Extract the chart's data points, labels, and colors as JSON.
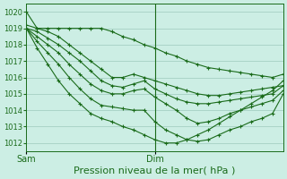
{
  "bg_color": "#cceee4",
  "grid_color": "#aad4c8",
  "line_color": "#1a6b1a",
  "marker_color": "#1a6b1a",
  "xlabel": "Pression niveau de la mer( hPa )",
  "xlabel_fontsize": 8,
  "ylim": [
    1011.5,
    1020.5
  ],
  "yticks": [
    1012,
    1013,
    1014,
    1015,
    1016,
    1017,
    1018,
    1019,
    1020
  ],
  "ytick_fontsize": 6,
  "xtick_labels": [
    "Sam",
    "Dim"
  ],
  "xtick_positions": [
    0,
    24
  ],
  "xlim": [
    0,
    48
  ],
  "vline_x": 24,
  "series": [
    {
      "x": [
        0,
        2,
        4,
        6,
        8,
        10,
        12,
        14,
        16,
        18,
        20,
        22,
        24,
        26,
        28,
        30,
        32,
        34,
        36,
        38,
        40,
        42,
        44,
        46,
        48
      ],
      "y": [
        1020.0,
        1019.0,
        1019.0,
        1019.0,
        1019.0,
        1019.0,
        1019.0,
        1019.0,
        1018.8,
        1018.5,
        1018.3,
        1018.0,
        1017.8,
        1017.5,
        1017.3,
        1017.0,
        1016.8,
        1016.6,
        1016.5,
        1016.4,
        1016.3,
        1016.2,
        1016.1,
        1016.0,
        1016.2
      ]
    },
    {
      "x": [
        0,
        2,
        4,
        6,
        8,
        10,
        12,
        14,
        16,
        18,
        20,
        22,
        24,
        26,
        28,
        30,
        32,
        34,
        36,
        38,
        40,
        42,
        44,
        46,
        48
      ],
      "y": [
        1019.2,
        1019.0,
        1018.8,
        1018.5,
        1018.0,
        1017.5,
        1017.0,
        1016.5,
        1016.0,
        1016.0,
        1016.2,
        1016.0,
        1015.8,
        1015.6,
        1015.4,
        1015.2,
        1015.0,
        1014.9,
        1014.9,
        1015.0,
        1015.1,
        1015.2,
        1015.3,
        1015.4,
        1015.5
      ]
    },
    {
      "x": [
        0,
        2,
        4,
        6,
        8,
        10,
        12,
        14,
        16,
        18,
        20,
        22,
        24,
        26,
        28,
        30,
        32,
        34,
        36,
        38,
        40,
        42,
        44,
        46,
        48
      ],
      "y": [
        1019.0,
        1018.8,
        1018.4,
        1018.0,
        1017.5,
        1017.0,
        1016.4,
        1015.8,
        1015.5,
        1015.4,
        1015.6,
        1015.8,
        1015.3,
        1015.0,
        1014.7,
        1014.5,
        1014.4,
        1014.4,
        1014.5,
        1014.6,
        1014.7,
        1014.8,
        1014.9,
        1015.0,
        1015.5
      ]
    },
    {
      "x": [
        0,
        2,
        4,
        6,
        8,
        10,
        12,
        14,
        16,
        18,
        20,
        22,
        24,
        26,
        28,
        30,
        32,
        34,
        36,
        38,
        40,
        42,
        44,
        46,
        48
      ],
      "y": [
        1019.0,
        1018.5,
        1018.0,
        1017.5,
        1016.8,
        1016.2,
        1015.6,
        1015.2,
        1015.0,
        1015.0,
        1015.2,
        1015.3,
        1014.8,
        1014.4,
        1014.0,
        1013.5,
        1013.2,
        1013.3,
        1013.5,
        1013.8,
        1014.0,
        1014.2,
        1014.4,
        1014.6,
        1015.2
      ]
    },
    {
      "x": [
        0,
        2,
        4,
        6,
        8,
        10,
        12,
        14,
        16,
        18,
        20,
        22,
        24,
        26,
        28,
        30,
        32,
        34,
        36,
        38,
        40,
        42,
        44,
        46,
        48
      ],
      "y": [
        1019.0,
        1018.2,
        1017.5,
        1016.8,
        1016.0,
        1015.3,
        1014.7,
        1014.3,
        1014.2,
        1014.1,
        1014.0,
        1014.0,
        1013.3,
        1012.8,
        1012.5,
        1012.2,
        1012.1,
        1012.2,
        1012.5,
        1012.8,
        1013.0,
        1013.3,
        1013.5,
        1013.8,
        1015.0
      ]
    },
    {
      "x": [
        0,
        2,
        4,
        6,
        8,
        10,
        12,
        14,
        16,
        18,
        20,
        22,
        24,
        26,
        28,
        30,
        32,
        34,
        36,
        38,
        40,
        42,
        44,
        46,
        48
      ],
      "y": [
        1019.0,
        1017.8,
        1016.8,
        1015.8,
        1015.0,
        1014.4,
        1013.8,
        1013.5,
        1013.3,
        1013.0,
        1012.8,
        1012.5,
        1012.2,
        1012.0,
        1012.0,
        1012.2,
        1012.5,
        1012.8,
        1013.2,
        1013.6,
        1014.0,
        1014.4,
        1014.8,
        1015.2,
        1015.8
      ]
    }
  ]
}
